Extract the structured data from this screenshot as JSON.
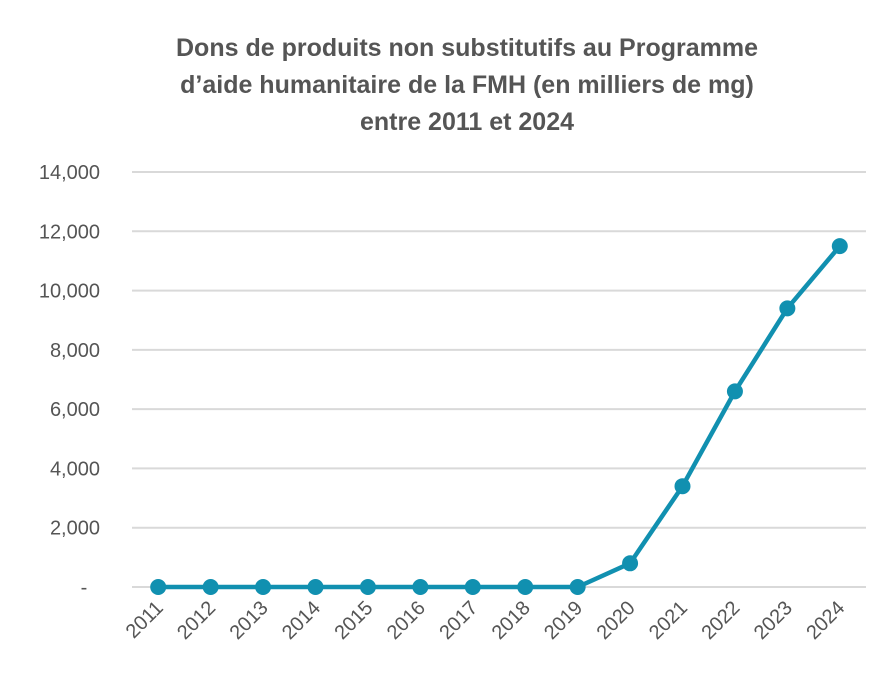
{
  "chart_data": {
    "type": "line",
    "title": [
      "Dons de produits non substitutifs au Programme",
      "d’aide humanitaire de la FMH (en milliers de mg)",
      "entre 2011 et 2024"
    ],
    "xlabel": "",
    "ylabel": "",
    "categories": [
      "2011",
      "2012",
      "2013",
      "2014",
      "2015",
      "2016",
      "2017",
      "2018",
      "2019",
      "2020",
      "2021",
      "2022",
      "2023",
      "2024"
    ],
    "values": [
      0,
      0,
      0,
      0,
      0,
      0,
      0,
      0,
      0,
      800,
      3400,
      6600,
      9400,
      11500
    ],
    "ylim": [
      0,
      14000
    ],
    "yticks": [
      0,
      2000,
      4000,
      6000,
      8000,
      10000,
      12000,
      14000
    ],
    "ytick_labels": [
      "-",
      "2,000",
      "4,000",
      "6,000",
      "8,000",
      "10,000",
      "12,000",
      "14,000"
    ],
    "grid": "horizontal",
    "legend": "none",
    "series_color": "#1190B0",
    "grid_color": "#D9D9D9"
  }
}
